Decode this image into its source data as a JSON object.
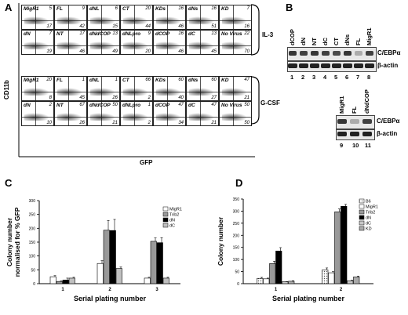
{
  "panels": {
    "A": "A",
    "B": "B",
    "C": "C",
    "D": "D"
  },
  "panelA": {
    "yaxis": "CD11b",
    "xaxis": "GFP",
    "groups": [
      {
        "label": "IL-3",
        "rows": [
          [
            {
              "name": "MigR1",
              "q1": "5",
              "q2": "17"
            },
            {
              "name": "FL",
              "q1": "9",
              "q2": "42"
            },
            {
              "name": "dNL",
              "q1": "6",
              "q2": "15"
            },
            {
              "name": "CT",
              "q1": "20",
              "q2": "44"
            },
            {
              "name": "KDs",
              "q1": "16",
              "q2": "46"
            },
            {
              "name": "dNs",
              "q1": "16",
              "q2": "51"
            },
            {
              "name": "KD",
              "q1": "7",
              "q2": "16"
            }
          ],
          [
            {
              "name": "dN",
              "q1": "7",
              "q2": "19"
            },
            {
              "name": "NT",
              "q1": "17",
              "q2": "46"
            },
            {
              "name": "dNdCOP",
              "q1": "13",
              "q2": "49"
            },
            {
              "name": "dNLpro",
              "q1": "9",
              "q2": "20"
            },
            {
              "name": "dCOP",
              "q1": "16",
              "q2": "46"
            },
            {
              "name": "dC",
              "q1": "13",
              "q2": "45"
            },
            {
              "name": "No Virus",
              "q1": "22",
              "q2": "70"
            }
          ]
        ]
      },
      {
        "label": "G-CSF",
        "rows": [
          [
            {
              "name": "MigR1",
              "q1": "20",
              "q2": "8"
            },
            {
              "name": "FL",
              "q1": "1",
              "q2": "45"
            },
            {
              "name": "dNL",
              "q1": "1",
              "q2": "26"
            },
            {
              "name": "CT",
              "q1": "66",
              "q2": "2"
            },
            {
              "name": "KDs",
              "q1": "60",
              "q2": "40"
            },
            {
              "name": "dNs",
              "q1": "60",
              "q2": "27"
            },
            {
              "name": "KD",
              "q1": "47",
              "q2": "21"
            }
          ],
          [
            {
              "name": "dN",
              "q1": "2",
              "q2": "10"
            },
            {
              "name": "NT",
              "q1": "67",
              "q2": "26"
            },
            {
              "name": "dNdCOP",
              "q1": "50",
              "q2": "21"
            },
            {
              "name": "dNLpro",
              "q1": "1",
              "q2": "2"
            },
            {
              "name": "dCOP",
              "q1": "47",
              "q2": "34"
            },
            {
              "name": "dC",
              "q1": "47",
              "q2": "21"
            },
            {
              "name": "No Virus",
              "q1": "50",
              "q2": "50"
            }
          ]
        ]
      }
    ]
  },
  "panelB": {
    "blot1": {
      "lanes": [
        "dCOP",
        "dN",
        "NT",
        "dC",
        "CT",
        "dNs",
        "FL",
        "MigR1"
      ],
      "numbers": [
        "1",
        "2",
        "3",
        "4",
        "5",
        "6",
        "7",
        "8"
      ],
      "top": "C/EBPα",
      "bottom": "β-actin",
      "intensity": [
        0.9,
        0.85,
        0.9,
        0.85,
        0.8,
        0.9,
        0.3,
        0.85
      ]
    },
    "blot2": {
      "lanes": [
        "MigR1",
        "FL",
        "dNdCOP"
      ],
      "numbers": [
        "9",
        "10",
        "11"
      ],
      "top": "C/EBPα",
      "bottom": "β-actin",
      "intensity": [
        0.9,
        0.3,
        0.85
      ]
    }
  },
  "chart_data": [
    {
      "type": "bar",
      "ylabel": "Colony number\nnormalised for % GFP",
      "xlabel": "Serial plating number",
      "ylim": [
        0,
        300
      ],
      "yticks": [
        0,
        50,
        100,
        150,
        200,
        250,
        300
      ],
      "categories": [
        "1",
        "2",
        "3"
      ],
      "series": [
        {
          "name": "MigR1",
          "color": "#ffffff",
          "values": [
            25,
            73,
            20
          ],
          "err": [
            4,
            10,
            3
          ]
        },
        {
          "name": "Trib2",
          "color": "#999999",
          "values": [
            8,
            193,
            153
          ],
          "err": [
            2,
            35,
            12
          ]
        },
        {
          "name": "dN",
          "color": "#000000",
          "values": [
            13,
            192,
            148
          ],
          "err": [
            7,
            40,
            18
          ]
        },
        {
          "name": "dC",
          "color": "#c0c0c0",
          "values": [
            20,
            55,
            20
          ],
          "err": [
            3,
            5,
            3
          ]
        }
      ]
    },
    {
      "type": "bar",
      "ylabel": "Colony number",
      "xlabel": "Serial plating number",
      "ylim": [
        0,
        350
      ],
      "yticks": [
        0,
        50,
        100,
        150,
        200,
        250,
        300,
        350
      ],
      "categories": [
        "1",
        "2"
      ],
      "series": [
        {
          "name": "B6",
          "color": "#e8e8e8",
          "pattern": true,
          "values": [
            22,
            57
          ],
          "err": [
            4,
            8
          ]
        },
        {
          "name": "MigR1",
          "color": "#ffffff",
          "values": [
            20,
            45
          ],
          "err": [
            3,
            5
          ]
        },
        {
          "name": "Trib2",
          "color": "#999999",
          "values": [
            83,
            297
          ],
          "err": [
            10,
            12
          ]
        },
        {
          "name": "dN",
          "color": "#000000",
          "values": [
            135,
            320
          ],
          "err": [
            14,
            8
          ]
        },
        {
          "name": "dC",
          "color": "#c8c8c8",
          "values": [
            8,
            12
          ],
          "err": [
            1,
            2
          ]
        },
        {
          "name": "KD",
          "color": "#aaaaaa",
          "values": [
            10,
            28
          ],
          "err": [
            2,
            3
          ]
        }
      ]
    }
  ]
}
